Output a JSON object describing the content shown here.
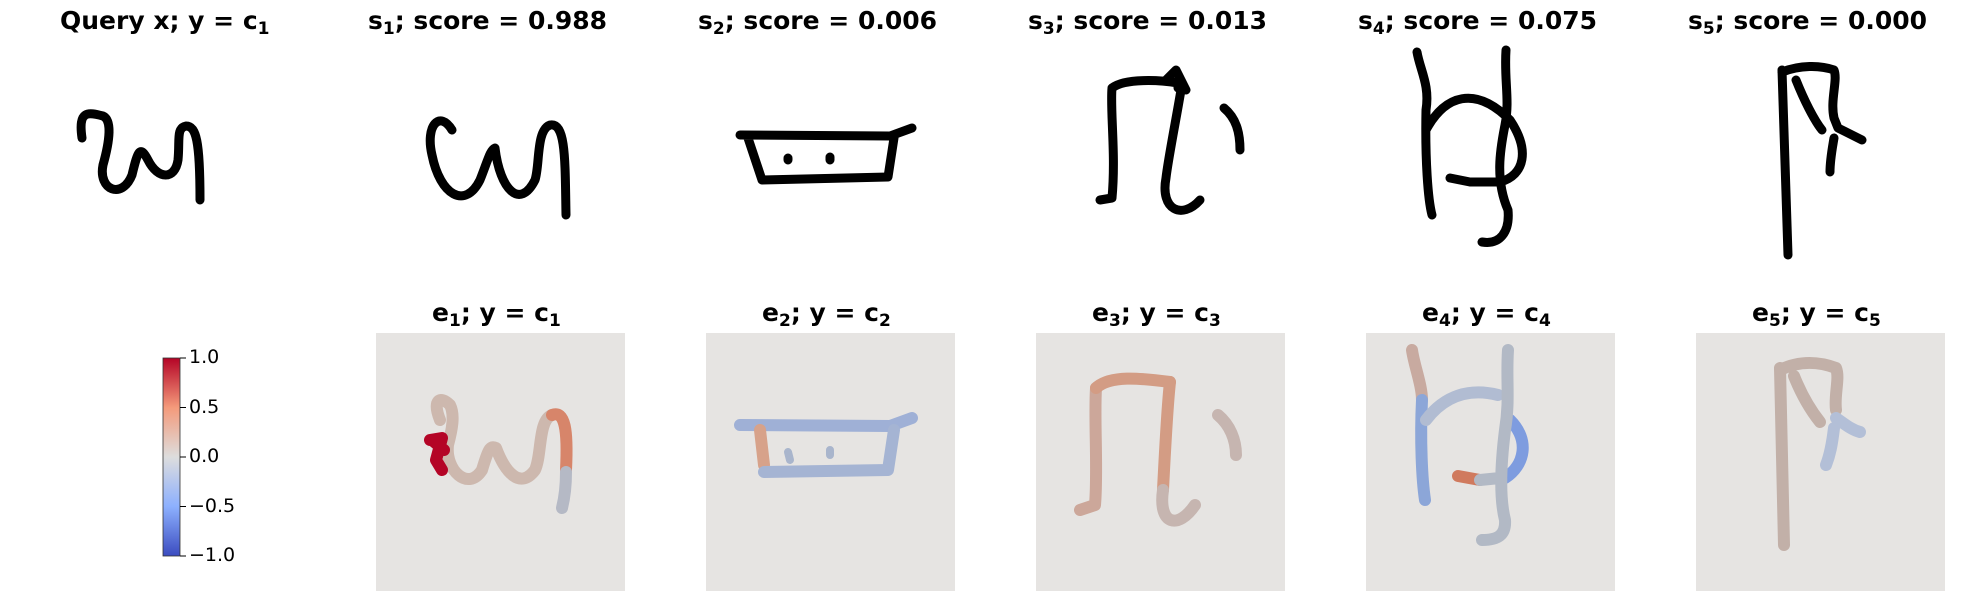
{
  "query": {
    "title": "Query x; y = c",
    "sub": "1"
  },
  "samples": [
    {
      "name": "s",
      "sub": "1",
      "score_text": "; score = 0.988"
    },
    {
      "name": "s",
      "sub": "2",
      "score_text": "; score = 0.006"
    },
    {
      "name": "s",
      "sub": "3",
      "score_text": "; score = 0.013"
    },
    {
      "name": "s",
      "sub": "4",
      "score_text": "; score = 0.075"
    },
    {
      "name": "s",
      "sub": "5",
      "score_text": "; score = 0.000"
    }
  ],
  "explanations": [
    {
      "name": "e",
      "sub": "1",
      "mid": "; y = c",
      "csub": "1"
    },
    {
      "name": "e",
      "sub": "2",
      "mid": "; y = c",
      "csub": "2"
    },
    {
      "name": "e",
      "sub": "3",
      "mid": "; y = c",
      "csub": "3"
    },
    {
      "name": "e",
      "sub": "4",
      "mid": "; y = c",
      "csub": "4"
    },
    {
      "name": "e",
      "sub": "5",
      "mid": "; y = c",
      "csub": "5"
    }
  ],
  "colorbar": {
    "ticks": [
      "1.0",
      "0.5",
      "0.0",
      "−0.5",
      "−1.0"
    ],
    "range": [
      -1.0,
      1.0
    ],
    "colormap": "coolwarm"
  },
  "colors": {
    "panel_bg": "#e6e4e2",
    "stroke": "#000000",
    "red": "#b40426",
    "blue": "#3b4cc0"
  }
}
